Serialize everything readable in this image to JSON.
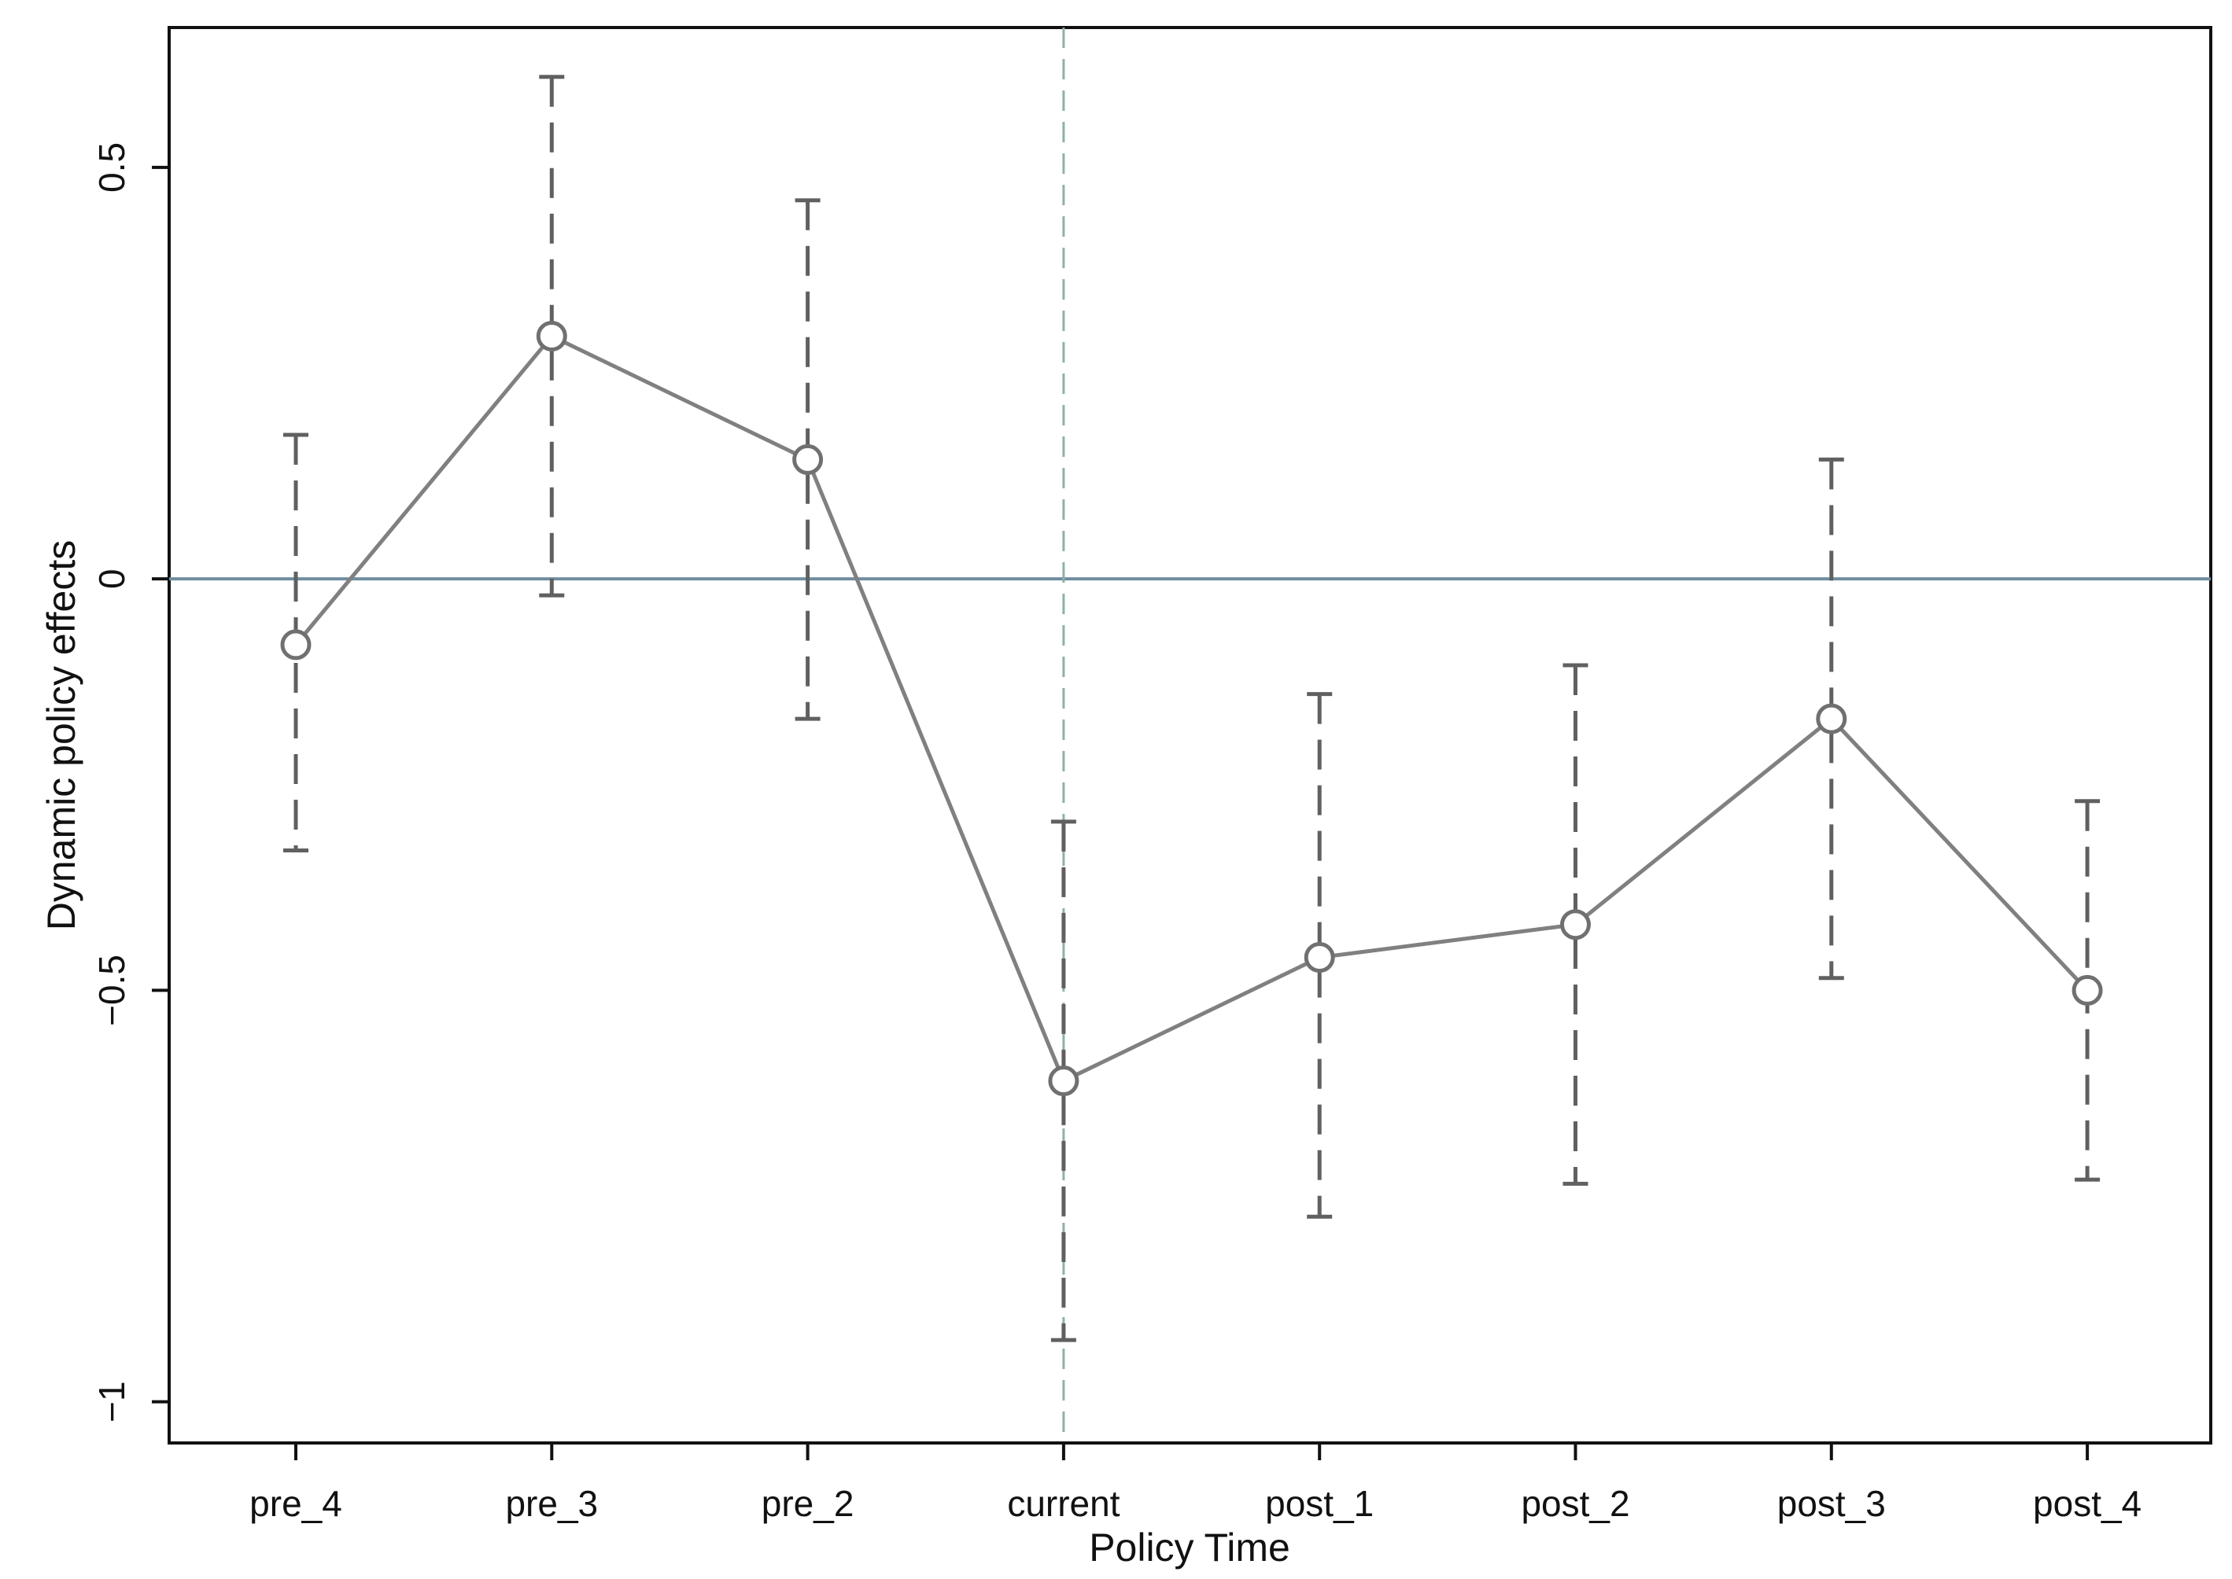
{
  "chart_data": {
    "type": "line",
    "title": "",
    "xlabel": "Policy Time",
    "ylabel": "Dynamic policy effects",
    "categories": [
      "pre_4",
      "pre_3",
      "pre_2",
      "current",
      "post_1",
      "post_2",
      "post_3",
      "post_4"
    ],
    "series": [
      {
        "values": [
          -0.08,
          0.295,
          0.145,
          -0.61,
          -0.46,
          -0.42,
          -0.17,
          -0.5
        ],
        "ci_lower": [
          -0.33,
          -0.02,
          -0.17,
          -0.925,
          -0.775,
          -0.735,
          -0.485,
          -0.73
        ],
        "ci_upper": [
          0.175,
          0.61,
          0.46,
          -0.295,
          -0.14,
          -0.105,
          0.145,
          -0.27
        ]
      }
    ],
    "ylim": [
      -1.05,
      0.67
    ],
    "yticks": [
      -1,
      -0.5,
      0,
      0.5
    ],
    "ytick_labels": [
      "−1",
      "−0.5",
      "0",
      "0.5"
    ],
    "reference_lines": {
      "horizontal_y": 0,
      "vertical_x_category": "current"
    },
    "grid": false,
    "legend": "none",
    "colors": {
      "series_line": "#808080",
      "marker": "#707070",
      "ci": "#606060",
      "zero_line": "#6f8ea0",
      "vertical_line": "#8fb0a8",
      "axes": "#111111"
    }
  }
}
